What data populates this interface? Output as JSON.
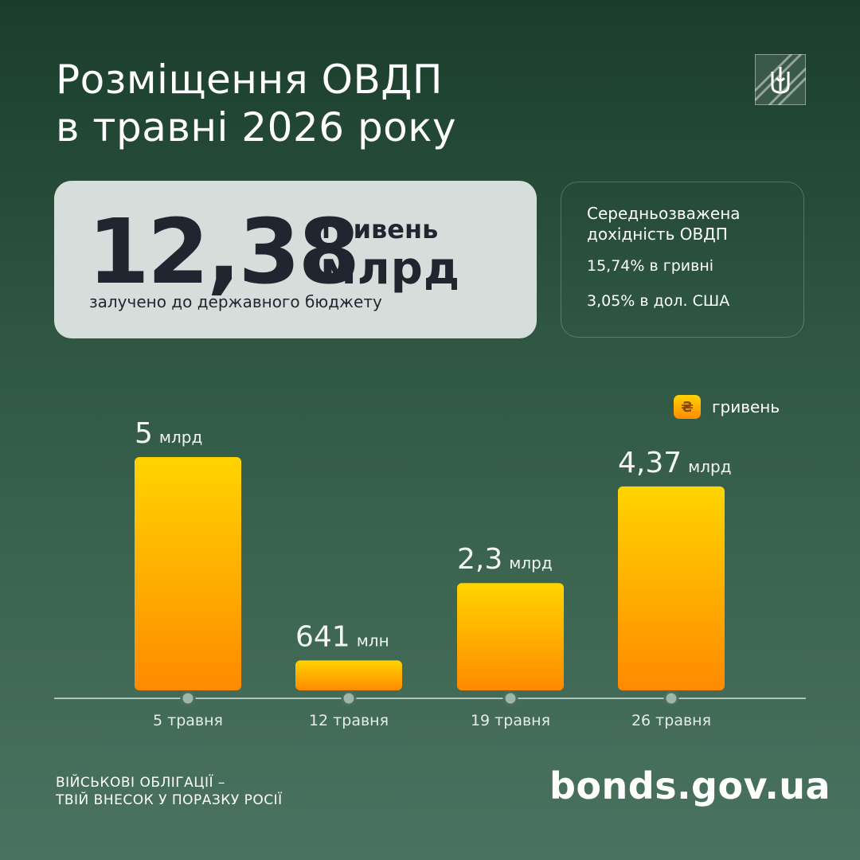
{
  "header": {
    "title_line1": "Розміщення ОВДП",
    "title_line2": "в травні 2026 року"
  },
  "emblem_icon": "tryzub-icon",
  "summary": {
    "amount": "12,38",
    "currency": "гривень",
    "unit": "млрд",
    "caption": "залучено до державного бюджету"
  },
  "yield": {
    "title": "Середньозважена дохідність ОВДП",
    "uah": "15,74% в гривні",
    "usd": "3,05% в дол. США"
  },
  "legend": {
    "symbol": "₴",
    "label": "гривень"
  },
  "colors": {
    "bar_top": "#ffd400",
    "bar_bottom": "#ff8a00",
    "card_bg": "#d6dedb",
    "text_dark": "#1f2630"
  },
  "chart_data": {
    "type": "bar",
    "unit": "млрд гривень",
    "categories": [
      "5 травня",
      "12 травня",
      "19 травня",
      "26 травня"
    ],
    "values": [
      5,
      0.641,
      2.3,
      4.37
    ],
    "value_labels": [
      {
        "num": "5",
        "unit": "млрд"
      },
      {
        "num": "641",
        "unit": "млн"
      },
      {
        "num": "2,3",
        "unit": "млрд"
      },
      {
        "num": "4,37",
        "unit": "млрд"
      }
    ]
  },
  "footer": {
    "slogan_line1": "ВІЙСЬКОВІ ОБЛІГАЦІЇ –",
    "slogan_line2": "ТВІЙ ВНЕСОК У ПОРАЗКУ РОСІЇ",
    "site": "bonds.gov.ua"
  }
}
